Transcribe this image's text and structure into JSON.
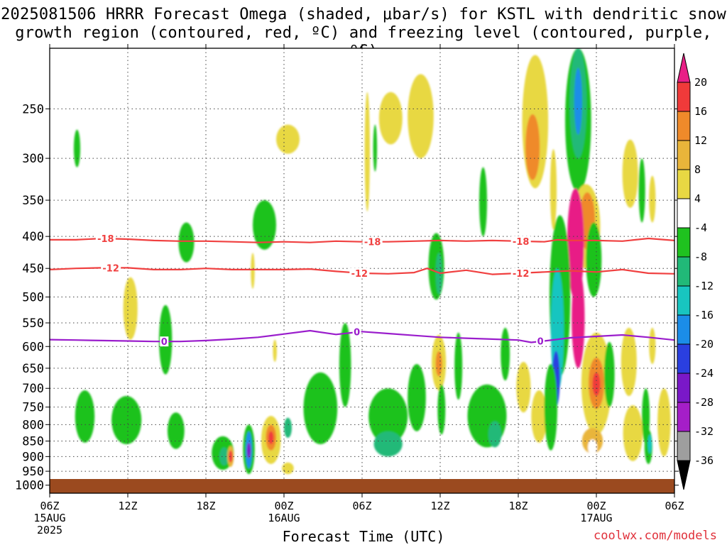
{
  "title_line1": "2025081506 HRRR Forecast Omega (shaded, μbar/s) for KSTL with dendritic snow",
  "title_line2": "growth region (contoured, red, ºC) and freezing level (contoured, purple, ºC)",
  "xlabel": "Forecast Time (UTC)",
  "credit": "coolwx.com/models",
  "chart_data": {
    "type": "heatmap",
    "title": "2025081506 HRRR Forecast Omega (shaded, μbar/s) for KSTL with dendritic snow growth region (contoured, red, ºC) and freezing level (contoured, purple, ºC)",
    "xlabel": "Forecast Time (UTC)",
    "ylabel": "",
    "x_ticks": [
      {
        "label": "06Z",
        "sub": [
          "15AUG",
          "2025"
        ],
        "hour": 0
      },
      {
        "label": "12Z",
        "sub": [],
        "hour": 6
      },
      {
        "label": "18Z",
        "sub": [],
        "hour": 12
      },
      {
        "label": "00Z",
        "sub": [
          "16AUG"
        ],
        "hour": 18
      },
      {
        "label": "06Z",
        "sub": [],
        "hour": 24
      },
      {
        "label": "12Z",
        "sub": [],
        "hour": 30
      },
      {
        "label": "18Z",
        "sub": [],
        "hour": 36
      },
      {
        "label": "00Z",
        "sub": [
          "17AUG"
        ],
        "hour": 42
      },
      {
        "label": "06Z",
        "sub": [],
        "hour": 48
      }
    ],
    "xlim": [
      0,
      48
    ],
    "y_ticks": [
      250,
      300,
      350,
      400,
      450,
      500,
      550,
      600,
      650,
      700,
      750,
      800,
      850,
      900,
      950,
      1000
    ],
    "ylim": [
      1030,
      200
    ],
    "y_scale": "log (pressure, hPa)",
    "colorbar": {
      "levels": [
        20,
        16,
        12,
        8,
        4,
        -4,
        -8,
        -12,
        -16,
        -20,
        -24,
        -28,
        -32,
        -36
      ],
      "colors": [
        "#e81f86",
        "#f03a3a",
        "#ef8a2a",
        "#e9b53a",
        "#e8d843",
        "#ffffff",
        "#1fc21f",
        "#21b978",
        "#18c5c0",
        "#1b8de8",
        "#2a3fe0",
        "#7a18c8",
        "#a51ec8",
        "#9e9e9e",
        "#000000"
      ]
    },
    "contours": [
      {
        "name": "-18",
        "color": "#f04040",
        "points": [
          [
            0,
            405
          ],
          [
            2,
            405
          ],
          [
            4,
            403
          ],
          [
            6,
            404
          ],
          [
            8,
            406
          ],
          [
            10,
            407
          ],
          [
            12,
            407
          ],
          [
            14,
            408
          ],
          [
            16,
            409
          ],
          [
            18,
            408
          ],
          [
            20,
            409
          ],
          [
            22,
            407
          ],
          [
            24,
            408
          ],
          [
            26,
            408
          ],
          [
            28,
            407
          ],
          [
            30,
            406
          ],
          [
            32,
            407
          ],
          [
            34,
            406
          ],
          [
            36,
            407
          ],
          [
            38,
            408
          ],
          [
            39,
            405
          ],
          [
            40,
            406
          ],
          [
            42,
            406
          ],
          [
            44,
            407
          ],
          [
            45,
            405
          ],
          [
            46,
            403
          ],
          [
            48,
            406
          ]
        ],
        "labels": [
          {
            "text": "-18",
            "x": 4.3
          },
          {
            "text": "-18",
            "x": 24.8
          },
          {
            "text": "-18",
            "x": 36.2
          }
        ]
      },
      {
        "name": "-12",
        "color": "#f04040",
        "points": [
          [
            0,
            452
          ],
          [
            2,
            450
          ],
          [
            4,
            449
          ],
          [
            6,
            449
          ],
          [
            8,
            452
          ],
          [
            10,
            452
          ],
          [
            12,
            450
          ],
          [
            14,
            452
          ],
          [
            16,
            452
          ],
          [
            18,
            452
          ],
          [
            20,
            451
          ],
          [
            22,
            455
          ],
          [
            24,
            458
          ],
          [
            26,
            459
          ],
          [
            28,
            457
          ],
          [
            29,
            450
          ],
          [
            30,
            458
          ],
          [
            32,
            453
          ],
          [
            34,
            460
          ],
          [
            36,
            458
          ],
          [
            38,
            456
          ],
          [
            40,
            454
          ],
          [
            42,
            456
          ],
          [
            44,
            452
          ],
          [
            46,
            458
          ],
          [
            48,
            459
          ]
        ],
        "labels": [
          {
            "text": "-12",
            "x": 4.7
          },
          {
            "text": "-12",
            "x": 23.8
          },
          {
            "text": "-12",
            "x": 36.2
          }
        ]
      },
      {
        "name": "0",
        "color": "#9a1dcc",
        "points": [
          [
            0,
            585
          ],
          [
            2,
            586
          ],
          [
            4,
            587
          ],
          [
            6,
            588
          ],
          [
            8,
            589
          ],
          [
            10,
            589
          ],
          [
            12,
            587
          ],
          [
            14,
            584
          ],
          [
            16,
            580
          ],
          [
            18,
            573
          ],
          [
            20,
            566
          ],
          [
            22,
            574
          ],
          [
            24,
            568
          ],
          [
            26,
            572
          ],
          [
            28,
            576
          ],
          [
            30,
            580
          ],
          [
            32,
            582
          ],
          [
            34,
            584
          ],
          [
            36,
            586
          ],
          [
            37,
            591
          ],
          [
            38,
            588
          ],
          [
            40,
            581
          ],
          [
            42,
            578
          ],
          [
            44,
            575
          ],
          [
            46,
            580
          ],
          [
            48,
            586
          ]
        ],
        "labels": [
          {
            "text": "0",
            "x": 8.8
          },
          {
            "text": "0",
            "x": 23.6
          },
          {
            "text": "0",
            "x": 37.7
          }
        ]
      }
    ],
    "omega_cells": [
      {
        "t": 2.1,
        "p": 290,
        "w": 0.5,
        "h": 40,
        "v": -6
      },
      {
        "t": 10.5,
        "p": 410,
        "w": 1.2,
        "h": 60,
        "v": -6
      },
      {
        "t": 16.5,
        "p": 385,
        "w": 1.8,
        "h": 70,
        "v": -7
      },
      {
        "t": 18.3,
        "p": 280,
        "w": 1.8,
        "h": 30,
        "v": 5
      },
      {
        "t": 15.6,
        "p": 455,
        "w": 0.3,
        "h": 60,
        "v": 4
      },
      {
        "t": 6.2,
        "p": 525,
        "w": 1.1,
        "h": 120,
        "v": 6
      },
      {
        "t": 8.9,
        "p": 590,
        "w": 1.0,
        "h": 150,
        "v": -6
      },
      {
        "t": 17.3,
        "p": 610,
        "w": 0.3,
        "h": 50,
        "v": 5
      },
      {
        "t": 26.2,
        "p": 260,
        "w": 1.8,
        "h": 50,
        "v": 5
      },
      {
        "t": 28.5,
        "p": 260,
        "w": 2.0,
        "h": 80,
        "v": 6
      },
      {
        "t": 24.4,
        "p": 300,
        "w": 0.4,
        "h": 130,
        "v": 4
      },
      {
        "t": 25.0,
        "p": 290,
        "w": 0.3,
        "h": 50,
        "v": -6
      },
      {
        "t": 29.7,
        "p": 450,
        "w": 1.2,
        "h": 110,
        "v": -8
      },
      {
        "t": 29.9,
        "p": 460,
        "w": 0.5,
        "h": 70,
        "v": -12
      },
      {
        "t": 33.3,
        "p": 355,
        "w": 0.6,
        "h": 90,
        "v": -6
      },
      {
        "t": 37.3,
        "p": 270,
        "w": 2.0,
        "h": 130,
        "v": 5
      },
      {
        "t": 37.1,
        "p": 290,
        "w": 1.1,
        "h": 70,
        "v": 12
      },
      {
        "t": 38.7,
        "p": 340,
        "w": 0.5,
        "h": 100,
        "v": 5
      },
      {
        "t": 40.6,
        "p": 270,
        "w": 2.0,
        "h": 140,
        "v": -8
      },
      {
        "t": 40.6,
        "p": 250,
        "w": 1.3,
        "h": 100,
        "v": -12
      },
      {
        "t": 40.6,
        "p": 245,
        "w": 0.6,
        "h": 60,
        "v": -18
      },
      {
        "t": 41.2,
        "p": 390,
        "w": 2.2,
        "h": 120,
        "v": 6
      },
      {
        "t": 41.3,
        "p": 380,
        "w": 1.2,
        "h": 80,
        "v": 12
      },
      {
        "t": 40.4,
        "p": 420,
        "w": 1.3,
        "h": 170,
        "v": 20
      },
      {
        "t": 44.6,
        "p": 320,
        "w": 1.2,
        "h": 80,
        "v": 5
      },
      {
        "t": 45.5,
        "p": 340,
        "w": 0.5,
        "h": 80,
        "v": -6
      },
      {
        "t": 46.3,
        "p": 350,
        "w": 0.5,
        "h": 60,
        "v": 4
      },
      {
        "t": 41.8,
        "p": 440,
        "w": 1.2,
        "h": 120,
        "v": -7
      },
      {
        "t": 39.2,
        "p": 520,
        "w": 1.6,
        "h": 300,
        "v": -8
      },
      {
        "t": 39.0,
        "p": 580,
        "w": 1.0,
        "h": 260,
        "v": -16
      },
      {
        "t": 38.9,
        "p": 680,
        "w": 0.6,
        "h": 140,
        "v": -24
      },
      {
        "t": 40.6,
        "p": 550,
        "w": 1.0,
        "h": 200,
        "v": 20
      },
      {
        "t": 42.0,
        "p": 700,
        "w": 2.3,
        "h": 260,
        "v": 6
      },
      {
        "t": 42.0,
        "p": 690,
        "w": 1.2,
        "h": 130,
        "v": 14
      },
      {
        "t": 42.0,
        "p": 690,
        "w": 0.6,
        "h": 60,
        "v": 18
      },
      {
        "t": 41.7,
        "p": 850,
        "w": 1.6,
        "h": 80,
        "v": 8
      },
      {
        "t": 36.4,
        "p": 700,
        "w": 1.1,
        "h": 130,
        "v": 5
      },
      {
        "t": 37.6,
        "p": 780,
        "w": 1.2,
        "h": 150,
        "v": 6
      },
      {
        "t": 41.7,
        "p": 870,
        "w": 0.7,
        "h": 50,
        "v": 2
      },
      {
        "t": 44.5,
        "p": 640,
        "w": 1.2,
        "h": 160,
        "v": 5
      },
      {
        "t": 44.8,
        "p": 830,
        "w": 1.5,
        "h": 170,
        "v": 6
      },
      {
        "t": 43.0,
        "p": 670,
        "w": 0.8,
        "h": 160,
        "v": -6
      },
      {
        "t": 45.8,
        "p": 780,
        "w": 0.6,
        "h": 160,
        "v": -7
      },
      {
        "t": 46.0,
        "p": 870,
        "w": 0.6,
        "h": 110,
        "v": -8
      },
      {
        "t": 46.1,
        "p": 860,
        "w": 0.3,
        "h": 60,
        "v": -14
      },
      {
        "t": 47.2,
        "p": 800,
        "w": 1.0,
        "h": 200,
        "v": 5
      },
      {
        "t": 46.3,
        "p": 600,
        "w": 0.5,
        "h": 80,
        "v": 5
      },
      {
        "t": 2.7,
        "p": 780,
        "w": 1.5,
        "h": 150,
        "v": -7
      },
      {
        "t": 5.9,
        "p": 790,
        "w": 2.3,
        "h": 140,
        "v": -7
      },
      {
        "t": 9.7,
        "p": 820,
        "w": 1.3,
        "h": 110,
        "v": -6
      },
      {
        "t": 13.3,
        "p": 890,
        "w": 1.7,
        "h": 110,
        "v": -7
      },
      {
        "t": 13.4,
        "p": 900,
        "w": 0.7,
        "h": 60,
        "v": -12
      },
      {
        "t": 13.9,
        "p": 900,
        "w": 0.5,
        "h": 70,
        "v": 8
      },
      {
        "t": 13.9,
        "p": 900,
        "w": 0.3,
        "h": 40,
        "v": 16
      },
      {
        "t": 15.3,
        "p": 880,
        "w": 0.9,
        "h": 160,
        "v": -8
      },
      {
        "t": 15.3,
        "p": 880,
        "w": 0.5,
        "h": 120,
        "v": -18
      },
      {
        "t": 15.3,
        "p": 880,
        "w": 0.3,
        "h": 50,
        "v": -28
      },
      {
        "t": 17.0,
        "p": 850,
        "w": 1.5,
        "h": 150,
        "v": 6
      },
      {
        "t": 17.0,
        "p": 840,
        "w": 0.8,
        "h": 80,
        "v": 12
      },
      {
        "t": 17.0,
        "p": 840,
        "w": 0.4,
        "h": 40,
        "v": 17
      },
      {
        "t": 18.3,
        "p": 940,
        "w": 0.9,
        "h": 40,
        "v": 5
      },
      {
        "t": 18.3,
        "p": 810,
        "w": 0.6,
        "h": 60,
        "v": -10
      },
      {
        "t": 20.8,
        "p": 760,
        "w": 2.6,
        "h": 200,
        "v": -6
      },
      {
        "t": 22.7,
        "p": 650,
        "w": 0.9,
        "h": 200,
        "v": -7
      },
      {
        "t": 26.0,
        "p": 780,
        "w": 3.0,
        "h": 160,
        "v": -6
      },
      {
        "t": 28.2,
        "p": 730,
        "w": 1.4,
        "h": 180,
        "v": -6
      },
      {
        "t": 26.0,
        "p": 860,
        "w": 2.2,
        "h": 80,
        "v": -10
      },
      {
        "t": 29.9,
        "p": 640,
        "w": 1.1,
        "h": 130,
        "v": 5
      },
      {
        "t": 29.9,
        "p": 640,
        "w": 0.5,
        "h": 60,
        "v": 14
      },
      {
        "t": 30.1,
        "p": 760,
        "w": 0.6,
        "h": 140,
        "v": -6
      },
      {
        "t": 31.4,
        "p": 650,
        "w": 0.6,
        "h": 160,
        "v": -6
      },
      {
        "t": 33.6,
        "p": 780,
        "w": 3.0,
        "h": 180,
        "v": -7
      },
      {
        "t": 34.2,
        "p": 830,
        "w": 1.0,
        "h": 80,
        "v": -10
      },
      {
        "t": 35.0,
        "p": 620,
        "w": 0.7,
        "h": 120,
        "v": -6
      },
      {
        "t": 38.5,
        "p": 760,
        "w": 1.0,
        "h": 240,
        "v": -8
      }
    ]
  }
}
